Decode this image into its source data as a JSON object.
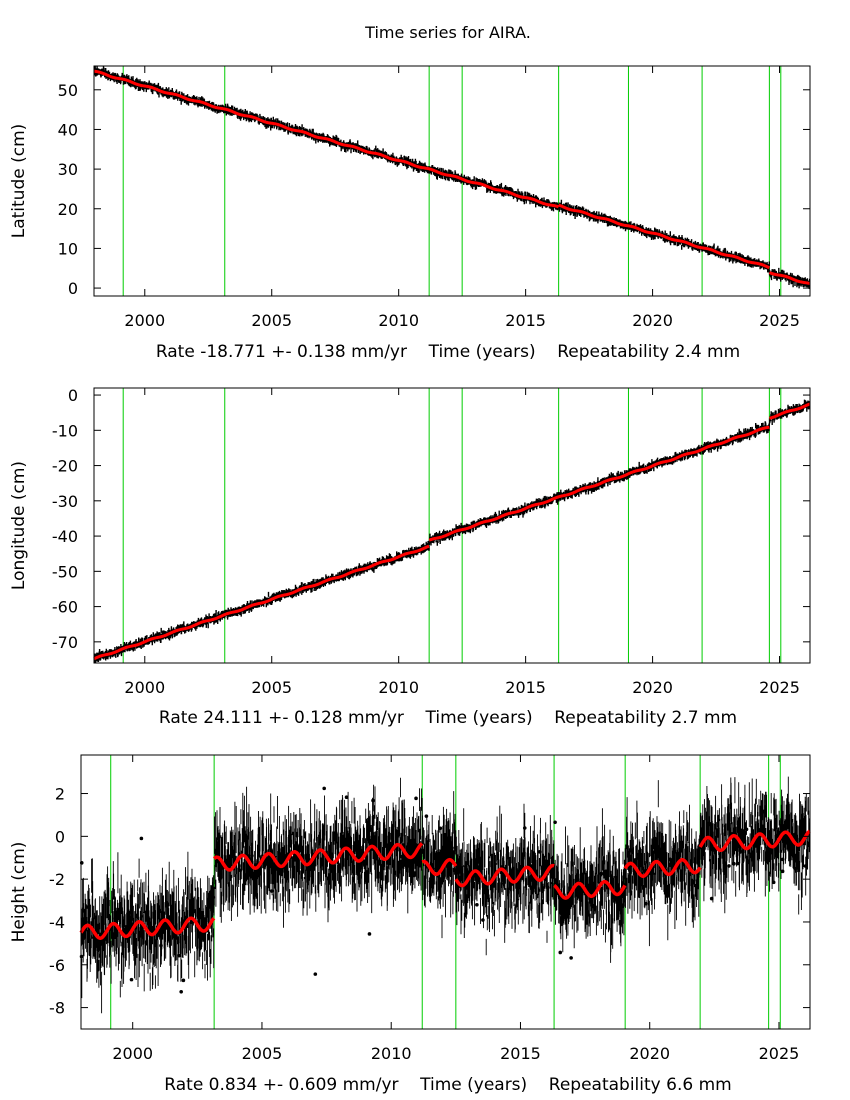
{
  "chart_data": [
    {
      "type": "scatter",
      "title": "Time series for AIRA.",
      "ylabel": "Latitude (cm)",
      "xlabel": "Rate -18.771 +- 0.138 mm/yr    Time (years)    Repeatability 2.4 mm",
      "xlim": [
        1998.0,
        2026.2
      ],
      "ylim": [
        -2,
        56
      ],
      "xticks": [
        2000,
        2005,
        2010,
        2015,
        2020,
        2025
      ],
      "xtick_labels": [
        "2000",
        "2005",
        "2010",
        "2015",
        "2020",
        "2025"
      ],
      "yticks": [
        0,
        10,
        20,
        30,
        40,
        50
      ],
      "ytick_labels": [
        "0",
        "10",
        "20",
        "30",
        "40",
        "50"
      ],
      "event_lines": [
        1999.15,
        2003.15,
        2011.2,
        2012.5,
        2016.3,
        2019.05,
        2021.95,
        2024.6,
        2025.05
      ],
      "model": {
        "rate_cm_per_yr": -1.8771,
        "segments": [
          {
            "x0": 1998.0,
            "y0": 54.7
          },
          {
            "x0": 2016.3,
            "y0": 20.8
          },
          {
            "x0": 2024.6,
            "y0": 4.0
          }
        ],
        "seasonal_amp": 0.15,
        "noise_sd": 0.45
      },
      "series": [
        {
          "name": "observations",
          "color": "#000000"
        },
        {
          "name": "model",
          "color": "#ff0000"
        },
        {
          "name": "events",
          "color": "#00cc00"
        }
      ]
    },
    {
      "type": "scatter",
      "ylabel": "Longitude (cm)",
      "xlabel": "Rate 24.111 +- 0.128 mm/yr    Time (years)    Repeatability 2.7 mm",
      "xlim": [
        1998.0,
        2026.2
      ],
      "ylim": [
        -76,
        2
      ],
      "xticks": [
        2000,
        2005,
        2010,
        2015,
        2020,
        2025
      ],
      "xtick_labels": [
        "2000",
        "2005",
        "2010",
        "2015",
        "2020",
        "2025"
      ],
      "yticks": [
        0,
        -10,
        -20,
        -30,
        -40,
        -50,
        -60,
        -70
      ],
      "ytick_labels": [
        "0",
        "-10",
        "-20",
        "-30",
        "-40",
        "-50",
        "-60",
        "-70"
      ],
      "event_lines": [
        1999.15,
        2003.15,
        2011.2,
        2012.5,
        2016.3,
        2019.05,
        2021.95,
        2024.6,
        2025.05
      ],
      "model": {
        "rate_cm_per_yr": 2.4111,
        "segments": [
          {
            "x0": 1998.0,
            "y0": -74.8
          },
          {
            "x0": 2011.2,
            "y0": -41.3
          },
          {
            "x0": 2024.6,
            "y0": -6.5
          }
        ],
        "seasonal_amp": 0.15,
        "noise_sd": 0.5
      },
      "series": [
        {
          "name": "observations",
          "color": "#000000"
        },
        {
          "name": "model",
          "color": "#ff0000"
        },
        {
          "name": "events",
          "color": "#00cc00"
        }
      ]
    },
    {
      "type": "scatter",
      "ylabel": "Height (cm)",
      "xlabel": "Rate 0.834 +- 0.609 mm/yr    Time (years)    Repeatability 6.6 mm",
      "xlim": [
        1998.0,
        2026.2
      ],
      "ylim": [
        -9,
        3.8
      ],
      "xticks": [
        2000,
        2005,
        2010,
        2015,
        2020,
        2025
      ],
      "xtick_labels": [
        "2000",
        "2005",
        "2010",
        "2015",
        "2020",
        "2025"
      ],
      "yticks": [
        2,
        0,
        -2,
        -4,
        -6,
        -8
      ],
      "ytick_labels": [
        "2",
        "0",
        "-2",
        "-4",
        "-6",
        "-8"
      ],
      "event_lines": [
        1999.15,
        2003.15,
        2011.2,
        2012.5,
        2016.3,
        2019.05,
        2021.95,
        2024.6,
        2025.05
      ],
      "model": {
        "rate_cm_per_yr": 0.0834,
        "segments": [
          {
            "x0": 1998.0,
            "y0": -4.5
          },
          {
            "x0": 2003.15,
            "y0": -1.3
          },
          {
            "x0": 2011.2,
            "y0": -1.5
          },
          {
            "x0": 2012.5,
            "y0": -2.0
          },
          {
            "x0": 2016.3,
            "y0": -2.6
          },
          {
            "x0": 2019.05,
            "y0": -1.6
          },
          {
            "x0": 2021.95,
            "y0": -0.4
          }
        ],
        "seasonal_amp": 0.32,
        "noise_sd": 0.9
      },
      "series": [
        {
          "name": "observations",
          "color": "#000000"
        },
        {
          "name": "model",
          "color": "#ff0000"
        },
        {
          "name": "events",
          "color": "#00cc00"
        }
      ]
    }
  ]
}
